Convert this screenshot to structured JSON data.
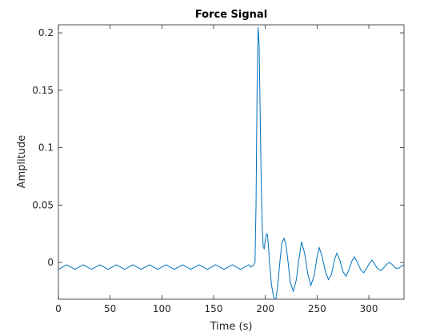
{
  "chart_data": {
    "type": "line",
    "title": "Force Signal",
    "x_label": "Time (s)",
    "y_label": "Amplitude",
    "xlim": [
      0,
      334
    ],
    "ylim": [
      -0.032,
      0.207
    ],
    "xticks": [
      0,
      50,
      100,
      150,
      200,
      250,
      300
    ],
    "yticks": [
      0,
      0.05,
      0.1,
      0.15,
      0.2
    ],
    "x": [
      0,
      4,
      8,
      12,
      16,
      20,
      24,
      28,
      32,
      36,
      40,
      44,
      48,
      52,
      56,
      60,
      64,
      68,
      72,
      76,
      80,
      84,
      88,
      92,
      96,
      100,
      104,
      108,
      112,
      116,
      120,
      124,
      128,
      132,
      136,
      140,
      144,
      148,
      152,
      156,
      160,
      164,
      168,
      172,
      176,
      180,
      184,
      186,
      188,
      190,
      191,
      192,
      193,
      194,
      195,
      196,
      197,
      198,
      199,
      200,
      201,
      202,
      203,
      204,
      206,
      208,
      210,
      212,
      214,
      216,
      218,
      220,
      222,
      224,
      227,
      230,
      232,
      235,
      238,
      241,
      244,
      247,
      250,
      252,
      255,
      258,
      261,
      264,
      267,
      269,
      272,
      275,
      278,
      281,
      284,
      286,
      289,
      292,
      295,
      298,
      301,
      303,
      306,
      309,
      312,
      315,
      318,
      320,
      323,
      326,
      329,
      332,
      334
    ],
    "series": [
      {
        "color": "#0072bd",
        "values": [
          -0.006,
          -0.004,
          -0.002,
          -0.004,
          -0.006,
          -0.004,
          -0.002,
          -0.004,
          -0.006,
          -0.004,
          -0.002,
          -0.004,
          -0.006,
          -0.004,
          -0.002,
          -0.004,
          -0.006,
          -0.004,
          -0.002,
          -0.004,
          -0.006,
          -0.004,
          -0.002,
          -0.004,
          -0.006,
          -0.004,
          -0.002,
          -0.004,
          -0.006,
          -0.004,
          -0.002,
          -0.004,
          -0.006,
          -0.004,
          -0.002,
          -0.004,
          -0.006,
          -0.004,
          -0.002,
          -0.004,
          -0.006,
          -0.004,
          -0.002,
          -0.004,
          -0.006,
          -0.004,
          -0.002,
          -0.004,
          -0.003,
          0.0,
          0.05,
          0.15,
          0.205,
          0.19,
          0.13,
          0.07,
          0.03,
          0.013,
          0.012,
          0.02,
          0.025,
          0.024,
          0.015,
          0.0,
          -0.02,
          -0.03,
          -0.033,
          -0.02,
          0.0,
          0.017,
          0.021,
          0.015,
          0.0,
          -0.017,
          -0.025,
          -0.015,
          0.0,
          0.018,
          0.008,
          -0.01,
          -0.02,
          -0.012,
          0.005,
          0.013,
          0.005,
          -0.008,
          -0.015,
          -0.01,
          0.003,
          0.008,
          0.002,
          -0.008,
          -0.012,
          -0.006,
          0.002,
          0.005,
          0.0,
          -0.006,
          -0.009,
          -0.005,
          0.0,
          0.002,
          -0.002,
          -0.006,
          -0.007,
          -0.004,
          -0.001,
          0.0,
          -0.002,
          -0.005,
          -0.005,
          -0.003,
          -0.002
        ]
      }
    ],
    "grid": false
  }
}
